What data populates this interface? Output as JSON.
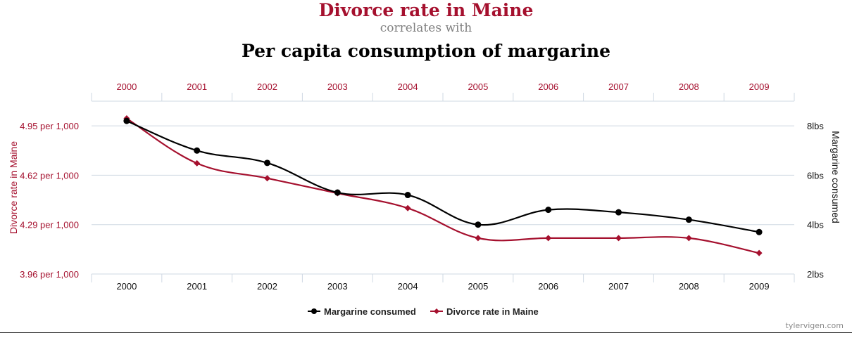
{
  "header": {
    "title": "Divorce rate in Maine",
    "connector": "correlates with",
    "subtitle": "Per capita consumption of margarine"
  },
  "footer": {
    "credit": "tylervigen.com"
  },
  "colors": {
    "divorce": "#a5102e",
    "margarine": "#000000",
    "grid": "#cfd8e3"
  },
  "chart_data": {
    "type": "line",
    "x": [
      "2000",
      "2001",
      "2002",
      "2003",
      "2004",
      "2005",
      "2006",
      "2007",
      "2008",
      "2009"
    ],
    "series": [
      {
        "name": "Margarine consumed",
        "axis": "right",
        "marker": "circle",
        "color": "#000000",
        "values": [
          8.2,
          7.0,
          6.5,
          5.3,
          5.2,
          4.0,
          4.6,
          4.5,
          4.2,
          3.7
        ]
      },
      {
        "name": "Divorce rate in Maine",
        "axis": "left",
        "marker": "diamond",
        "color": "#a5102e",
        "values": [
          5.0,
          4.7,
          4.6,
          4.5,
          4.4,
          4.2,
          4.2,
          4.2,
          4.2,
          4.1
        ]
      }
    ],
    "left_axis": {
      "label": "Divorce rate in Maine",
      "ticks": [
        3.96,
        4.29,
        4.62,
        4.95
      ],
      "tick_labels": [
        "3.96 per 1,000",
        "4.29 per 1,000",
        "4.62 per 1,000",
        "4.95 per 1,000"
      ],
      "ylim": [
        3.96,
        5.115
      ]
    },
    "right_axis": {
      "label": "Margarine consumed",
      "ticks": [
        2,
        4,
        6,
        8
      ],
      "tick_labels": [
        "2lbs",
        "4lbs",
        "6lbs",
        "8lbs"
      ],
      "ylim": [
        2,
        9
      ]
    },
    "grid": true,
    "legend": "bottom-center"
  }
}
